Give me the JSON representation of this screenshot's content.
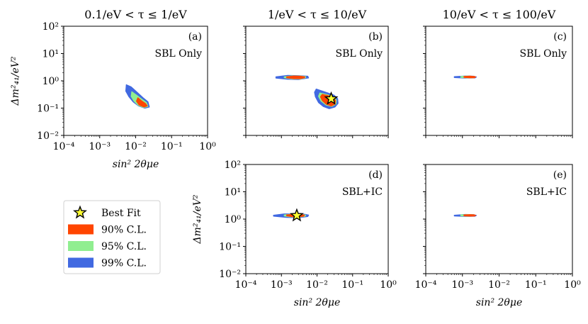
{
  "chart_data": [
    {
      "type": "scatter",
      "title": "0.1/eV < τ ≤ 1/eV",
      "panel": "(a)",
      "annotation": "SBL Only",
      "xlabel": "sin² 2θμe",
      "ylabel": "Δm²₄₁/eV²",
      "x_scale": "log",
      "y_scale": "log",
      "xlim": [
        0.0001,
        1
      ],
      "ylim": [
        0.01,
        100
      ],
      "x_ticks": [
        "10⁻⁴",
        "10⁻³",
        "10⁻²",
        "10⁻¹",
        "10⁰"
      ],
      "y_ticks": [
        "10⁻²",
        "10⁻¹",
        "10⁰",
        "10¹",
        "10²"
      ],
      "show_x_ticklabels": true,
      "show_y_ticklabels": true,
      "series": [
        {
          "level": "99",
          "regions": [
            {
              "polygon": [
                [
                  0.0055,
                  0.72
                ],
                [
                  0.0075,
                  0.6
                ],
                [
                  0.011,
                  0.38
                ],
                [
                  0.016,
                  0.24
                ],
                [
                  0.022,
                  0.17
                ],
                [
                  0.024,
                  0.11
                ],
                [
                  0.018,
                  0.1
                ],
                [
                  0.012,
                  0.12
                ],
                [
                  0.0085,
                  0.17
                ],
                [
                  0.0065,
                  0.26
                ],
                [
                  0.0053,
                  0.42
                ]
              ]
            }
          ]
        },
        {
          "level": "95",
          "regions": [
            {
              "polygon": [
                [
                  0.0078,
                  0.4
                ],
                [
                  0.0105,
                  0.3
                ],
                [
                  0.015,
                  0.21
                ],
                [
                  0.02,
                  0.16
                ],
                [
                  0.022,
                  0.115
                ],
                [
                  0.017,
                  0.105
                ],
                [
                  0.012,
                  0.125
                ],
                [
                  0.009,
                  0.18
                ],
                [
                  0.0075,
                  0.27
                ]
              ]
            }
          ]
        },
        {
          "level": "90",
          "regions": [
            {
              "polygon": [
                [
                  0.0115,
                  0.24
                ],
                [
                  0.015,
                  0.18
                ],
                [
                  0.019,
                  0.145
                ],
                [
                  0.021,
                  0.12
                ],
                [
                  0.017,
                  0.11
                ],
                [
                  0.0125,
                  0.13
                ],
                [
                  0.0105,
                  0.18
                ]
              ]
            }
          ]
        }
      ]
    },
    {
      "type": "scatter",
      "title": "1/eV < τ ≤ 10/eV",
      "panel": "(b)",
      "annotation": "SBL Only",
      "xlabel": "",
      "ylabel": "",
      "x_scale": "log",
      "y_scale": "log",
      "xlim": [
        0.0001,
        1
      ],
      "ylim": [
        0.01,
        100
      ],
      "show_x_ticklabels": false,
      "show_y_ticklabels": false,
      "best_fit": [
        0.025,
        0.22
      ],
      "series": [
        {
          "level": "99",
          "regions": [
            {
              "polygon": [
                [
                  0.0007,
                  1.4
                ],
                [
                  0.0015,
                  1.58
                ],
                [
                  0.003,
                  1.55
                ],
                [
                  0.0055,
                  1.48
                ],
                [
                  0.0058,
                  1.28
                ],
                [
                  0.003,
                  1.12
                ],
                [
                  0.0015,
                  1.14
                ],
                [
                  0.0007,
                  1.26
                ]
              ]
            },
            {
              "polygon": [
                [
                  0.0095,
                  0.5
                ],
                [
                  0.014,
                  0.42
                ],
                [
                  0.02,
                  0.36
                ],
                [
                  0.03,
                  0.3
                ],
                [
                  0.038,
                  0.22
                ],
                [
                  0.039,
                  0.15
                ],
                [
                  0.032,
                  0.11
                ],
                [
                  0.022,
                  0.095
                ],
                [
                  0.015,
                  0.115
                ],
                [
                  0.011,
                  0.16
                ],
                [
                  0.009,
                  0.26
                ],
                [
                  0.0085,
                  0.38
                ]
              ]
            }
          ]
        },
        {
          "level": "95",
          "regions": [
            {
              "polygon": [
                [
                  0.0012,
                  1.4
                ],
                [
                  0.002,
                  1.52
                ],
                [
                  0.0035,
                  1.5
                ],
                [
                  0.0048,
                  1.42
                ],
                [
                  0.0048,
                  1.3
                ],
                [
                  0.0035,
                  1.18
                ],
                [
                  0.002,
                  1.18
                ],
                [
                  0.0012,
                  1.3
                ]
              ]
            },
            {
              "polygon": [
                [
                  0.012,
                  0.36
                ],
                [
                  0.018,
                  0.32
                ],
                [
                  0.028,
                  0.27
                ],
                [
                  0.035,
                  0.2
                ],
                [
                  0.034,
                  0.14
                ],
                [
                  0.026,
                  0.115
                ],
                [
                  0.018,
                  0.13
                ],
                [
                  0.013,
                  0.18
                ],
                [
                  0.011,
                  0.27
                ]
              ]
            }
          ]
        },
        {
          "level": "90",
          "regions": [
            {
              "polygon": [
                [
                  0.0014,
                  1.4
                ],
                [
                  0.0022,
                  1.5
                ],
                [
                  0.0034,
                  1.48
                ],
                [
                  0.0045,
                  1.4
                ],
                [
                  0.0045,
                  1.3
                ],
                [
                  0.0034,
                  1.2
                ],
                [
                  0.0022,
                  1.2
                ],
                [
                  0.0014,
                  1.3
                ]
              ]
            },
            {
              "polygon": [
                [
                  0.014,
                  0.32
                ],
                [
                  0.02,
                  0.29
                ],
                [
                  0.028,
                  0.25
                ],
                [
                  0.033,
                  0.19
                ],
                [
                  0.032,
                  0.14
                ],
                [
                  0.025,
                  0.12
                ],
                [
                  0.018,
                  0.14
                ],
                [
                  0.014,
                  0.19
                ],
                [
                  0.0125,
                  0.26
                ]
              ]
            }
          ]
        }
      ]
    },
    {
      "type": "scatter",
      "title": "10/eV < τ ≤ 100/eV",
      "panel": "(c)",
      "annotation": "SBL Only",
      "xlabel": "",
      "ylabel": "",
      "x_scale": "log",
      "y_scale": "log",
      "xlim": [
        0.0001,
        1
      ],
      "ylim": [
        0.01,
        100
      ],
      "show_x_ticklabels": false,
      "show_y_ticklabels": false,
      "series": [
        {
          "level": "99",
          "regions": [
            {
              "polygon": [
                [
                  0.0006,
                  1.42
                ],
                [
                  0.0012,
                  1.5
                ],
                [
                  0.002,
                  1.48
                ],
                [
                  0.0024,
                  1.38
                ],
                [
                  0.0022,
                  1.28
                ],
                [
                  0.0012,
                  1.26
                ],
                [
                  0.0006,
                  1.32
                ]
              ]
            }
          ]
        },
        {
          "level": "95",
          "regions": [
            {
              "polygon": [
                [
                  0.0009,
                  1.44
                ],
                [
                  0.0014,
                  1.5
                ],
                [
                  0.002,
                  1.46
                ],
                [
                  0.0022,
                  1.38
                ],
                [
                  0.002,
                  1.3
                ],
                [
                  0.0014,
                  1.28
                ],
                [
                  0.0009,
                  1.34
                ]
              ]
            }
          ]
        },
        {
          "level": "90",
          "regions": [
            {
              "polygon": [
                [
                  0.0011,
                  1.44
                ],
                [
                  0.0016,
                  1.49
                ],
                [
                  0.0021,
                  1.45
                ],
                [
                  0.0023,
                  1.38
                ],
                [
                  0.0021,
                  1.3
                ],
                [
                  0.0016,
                  1.29
                ],
                [
                  0.0011,
                  1.34
                ]
              ]
            }
          ]
        }
      ]
    },
    {
      "type": "scatter",
      "title": "",
      "panel": "(d)",
      "annotation": "SBL+IC",
      "xlabel": "sin² 2θμe",
      "ylabel": "Δm²₄₁/eV²",
      "x_scale": "log",
      "y_scale": "log",
      "xlim": [
        0.0001,
        1
      ],
      "ylim": [
        0.01,
        100
      ],
      "x_ticks": [
        "10⁻⁴",
        "10⁻³",
        "10⁻²",
        "10⁻¹",
        "10⁰"
      ],
      "y_ticks": [
        "10⁻²",
        "10⁻¹",
        "10⁰",
        "10¹",
        "10²"
      ],
      "show_x_ticklabels": true,
      "show_y_ticklabels": true,
      "best_fit": [
        0.0027,
        1.35
      ],
      "series": [
        {
          "level": "99",
          "regions": [
            {
              "polygon": [
                [
                  0.0006,
                  1.38
                ],
                [
                  0.0012,
                  1.55
                ],
                [
                  0.0025,
                  1.55
                ],
                [
                  0.0045,
                  1.5
                ],
                [
                  0.0058,
                  1.4
                ],
                [
                  0.0055,
                  1.24
                ],
                [
                  0.003,
                  1.12
                ],
                [
                  0.0014,
                  1.15
                ],
                [
                  0.0006,
                  1.28
                ]
              ]
            }
          ]
        },
        {
          "level": "95",
          "regions": [
            {
              "polygon": [
                [
                  0.0012,
                  1.42
                ],
                [
                  0.002,
                  1.52
                ],
                [
                  0.0035,
                  1.5
                ],
                [
                  0.0048,
                  1.4
                ],
                [
                  0.0046,
                  1.26
                ],
                [
                  0.003,
                  1.18
                ],
                [
                  0.0018,
                  1.2
                ],
                [
                  0.0012,
                  1.3
                ]
              ]
            }
          ]
        },
        {
          "level": "90",
          "regions": [
            {
              "polygon": [
                [
                  0.0014,
                  1.42
                ],
                [
                  0.0022,
                  1.5
                ],
                [
                  0.0034,
                  1.48
                ],
                [
                  0.0044,
                  1.4
                ],
                [
                  0.0043,
                  1.28
                ],
                [
                  0.003,
                  1.2
                ],
                [
                  0.002,
                  1.22
                ],
                [
                  0.0014,
                  1.32
                ]
              ]
            }
          ]
        }
      ]
    },
    {
      "type": "scatter",
      "title": "",
      "panel": "(e)",
      "annotation": "SBL+IC",
      "xlabel": "sin² 2θμe",
      "ylabel": "",
      "x_scale": "log",
      "y_scale": "log",
      "xlim": [
        0.0001,
        1
      ],
      "ylim": [
        0.01,
        100
      ],
      "x_ticks": [
        "10⁻⁴",
        "10⁻³",
        "10⁻²",
        "10⁻¹",
        "10⁰"
      ],
      "show_x_ticklabels": true,
      "show_y_ticklabels": false,
      "series": [
        {
          "level": "99",
          "regions": [
            {
              "polygon": [
                [
                  0.0006,
                  1.38
                ],
                [
                  0.0012,
                  1.48
                ],
                [
                  0.002,
                  1.46
                ],
                [
                  0.0024,
                  1.36
                ],
                [
                  0.0022,
                  1.27
                ],
                [
                  0.0012,
                  1.25
                ],
                [
                  0.0006,
                  1.3
                ]
              ]
            }
          ]
        },
        {
          "level": "95",
          "regions": [
            {
              "polygon": [
                [
                  0.0009,
                  1.42
                ],
                [
                  0.0014,
                  1.47
                ],
                [
                  0.002,
                  1.44
                ],
                [
                  0.0022,
                  1.36
                ],
                [
                  0.002,
                  1.29
                ],
                [
                  0.0014,
                  1.27
                ],
                [
                  0.0009,
                  1.32
                ]
              ]
            }
          ]
        },
        {
          "level": "90",
          "regions": [
            {
              "polygon": [
                [
                  0.0011,
                  1.42
                ],
                [
                  0.0016,
                  1.46
                ],
                [
                  0.0021,
                  1.43
                ],
                [
                  0.0023,
                  1.36
                ],
                [
                  0.0021,
                  1.29
                ],
                [
                  0.0016,
                  1.28
                ],
                [
                  0.0011,
                  1.32
                ]
              ]
            }
          ]
        }
      ]
    }
  ],
  "legend": {
    "placement": "lower-left",
    "items": [
      {
        "key": "best_fit",
        "label": "Best Fit",
        "color": "#ffff33",
        "marker": "star"
      },
      {
        "key": "90",
        "label": "90% C.L.",
        "color": "#ff4500"
      },
      {
        "key": "95",
        "label": "95% C.L.",
        "color": "#90ee90"
      },
      {
        "key": "99",
        "label": "99% C.L.",
        "color": "#4169e1"
      }
    ]
  },
  "colors": {
    "cl90": "#ff4500",
    "cl95": "#90ee90",
    "cl99": "#4169e1",
    "best_fit": "#ffff33"
  }
}
